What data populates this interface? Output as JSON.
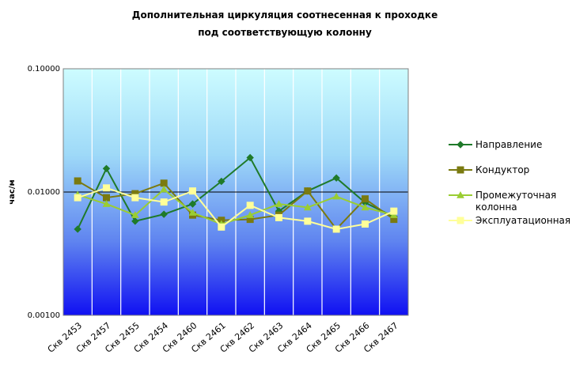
{
  "chart_data": {
    "type": "line",
    "title_lines": [
      "Дополнительная циркуляция соотнесенная к проходке",
      "под соответствующую колонну"
    ],
    "ylabel": "час/м",
    "xlabel": "",
    "y_scale": "log",
    "ylim": [
      0.001,
      0.1
    ],
    "y_ticks": [
      {
        "value": 0.1,
        "label": "0.10000"
      },
      {
        "value": 0.01,
        "label": "0.01000"
      },
      {
        "value": 0.001,
        "label": "0.00100"
      }
    ],
    "categories": [
      "Скв 2453",
      "Скв 2457",
      "Скв 2455",
      "Скв 2454",
      "Скв 2460",
      "Скв 2461",
      "Скв 2462",
      "Скв 2463",
      "Скв 2464",
      "Скв 2465",
      "Скв 2466",
      "Скв 2467"
    ],
    "grid": "vertical lines, horizontal line at 0.01",
    "legend_position": "right",
    "series": [
      {
        "name": "Направление",
        "color": "#1f7a2a",
        "marker": "diamond",
        "values": [
          0.005,
          0.0155,
          0.0058,
          0.0066,
          0.008,
          0.0122,
          0.019,
          0.007,
          0.0102,
          0.013,
          0.0082,
          0.0063
        ]
      },
      {
        "name": "Кондуктор",
        "color": "#7a7a10",
        "marker": "square",
        "values": [
          0.0123,
          0.009,
          0.0097,
          0.0118,
          0.0065,
          0.0059,
          0.006,
          0.0065,
          0.0102,
          0.005,
          0.0088,
          0.006
        ]
      },
      {
        "name": "Промежуточная колонна",
        "name_lines": [
          "Промежуточная",
          "колонна"
        ],
        "color": "#9acd32",
        "marker": "triangle",
        "values": [
          0.0095,
          0.008,
          0.0065,
          0.0105,
          0.0068,
          0.0055,
          0.0065,
          0.008,
          0.0075,
          0.0092,
          0.0075,
          0.0065
        ]
      },
      {
        "name": "Эксплуатационная",
        "color": "#ffff99",
        "marker": "square",
        "values": [
          0.009,
          0.0108,
          0.009,
          0.0083,
          0.0102,
          0.0052,
          0.0078,
          0.0062,
          0.0058,
          0.005,
          0.0055,
          0.007
        ]
      }
    ]
  }
}
